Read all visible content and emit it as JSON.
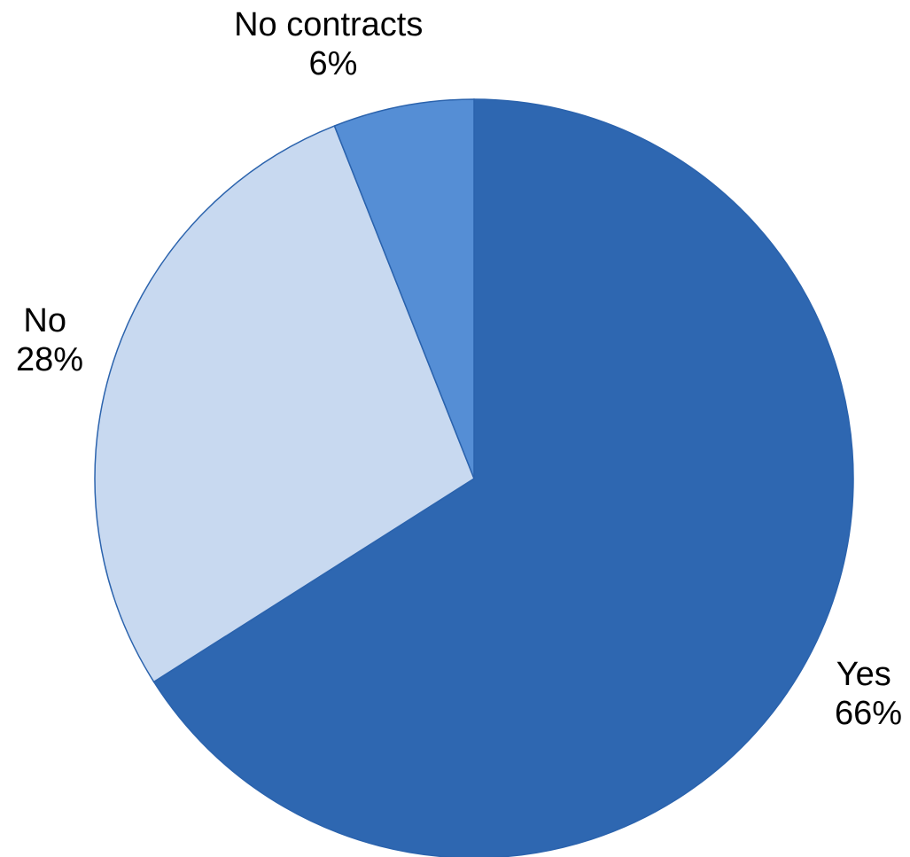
{
  "chart_data": {
    "type": "pie",
    "start_angle_deg": 0,
    "direction": "clockwise",
    "slices": [
      {
        "label": "Yes",
        "value": 66,
        "percent_label": "66%",
        "color": "#2e67b1"
      },
      {
        "label": "No",
        "value": 28,
        "percent_label": "28%",
        "color": "#c8d9f0"
      },
      {
        "label": "No contracts",
        "value": 6,
        "percent_label": "6%",
        "color": "#558ed5"
      }
    ]
  }
}
